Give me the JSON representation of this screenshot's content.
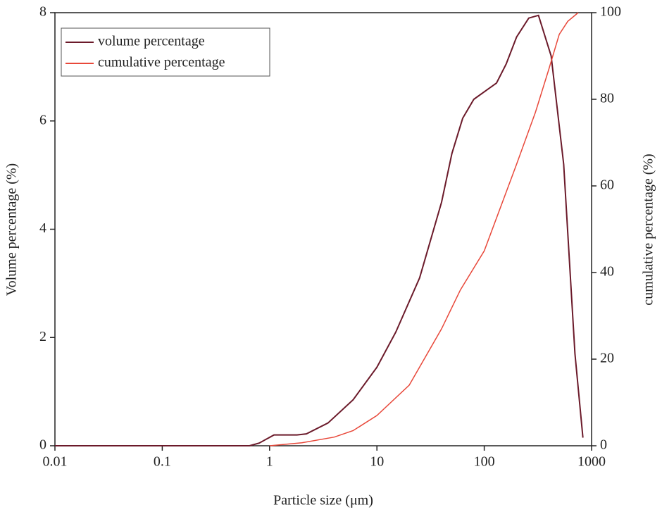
{
  "chart_data": {
    "type": "line",
    "xlabel": "Particle size (μm)",
    "ylabel": "Volume percentage (%)",
    "y2label": "cumulative percentage (%)",
    "xscale": "log",
    "xlim": [
      0.01,
      1000
    ],
    "xticks": [
      0.01,
      0.1,
      1,
      10,
      100,
      1000
    ],
    "ylim": [
      0,
      8
    ],
    "yticks": [
      0,
      2,
      4,
      6,
      8
    ],
    "y2lim": [
      0,
      100
    ],
    "y2ticks": [
      0,
      20,
      40,
      60,
      80,
      100
    ],
    "legend": "upper-left",
    "series": [
      {
        "name": "volume percentage",
        "color": "#6b1a2a",
        "x": [
          0.01,
          0.65,
          0.8,
          1.1,
          1.8,
          2.2,
          3.5,
          6,
          10,
          15,
          25,
          40,
          50,
          63,
          80,
          130,
          160,
          200,
          260,
          320,
          420,
          550,
          700,
          830
        ],
        "values": [
          0,
          0,
          0.05,
          0.2,
          0.2,
          0.22,
          0.42,
          0.85,
          1.45,
          2.1,
          3.1,
          4.5,
          5.4,
          6.05,
          6.4,
          6.7,
          7.05,
          7.55,
          7.9,
          7.95,
          7.2,
          5.2,
          1.7,
          0.15
        ]
      },
      {
        "name": "cumulative percentage",
        "color": "#e8483a",
        "axis": "y2",
        "x": [
          1,
          2,
          4,
          6,
          10,
          20,
          40,
          60,
          100,
          200,
          300,
          400,
          500,
          600,
          750
        ],
        "values": [
          0,
          0.7,
          2,
          3.5,
          7,
          14,
          27,
          36,
          45,
          65,
          77,
          87,
          95,
          98,
          100
        ]
      }
    ]
  }
}
